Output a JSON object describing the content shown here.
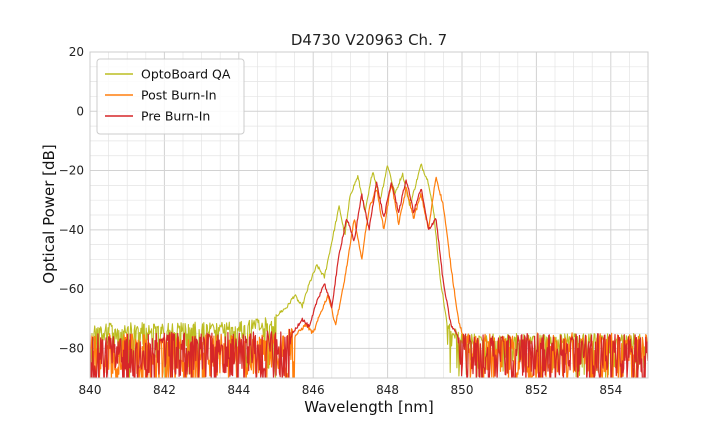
{
  "chart_data": {
    "type": "line",
    "title": "D4730 V20963 Ch. 7",
    "xlabel": "Wavelength [nm]",
    "ylabel": "Optical Power [dB]",
    "xlim": [
      840,
      855
    ],
    "ylim": [
      -90,
      20
    ],
    "xticks": [
      840,
      842,
      844,
      846,
      848,
      850,
      852,
      854
    ],
    "yticks": [
      -80,
      -60,
      -40,
      -20,
      0,
      20
    ],
    "grid": true,
    "legend_position": "top-left",
    "noise_floor": -90,
    "series": [
      {
        "name": "OptoBoard QA",
        "color": "#bcbd22",
        "noise_top": [
          [
            840,
            -71.5
          ],
          [
            844,
            -71
          ],
          [
            845,
            -69
          ],
          [
            845.3,
            -68
          ],
          [
            849.5,
            -70
          ],
          [
            850,
            -75
          ],
          [
            855,
            -75
          ]
        ],
        "points": [
          [
            845.0,
            -69
          ],
          [
            845.3,
            -66
          ],
          [
            845.5,
            -62
          ],
          [
            845.7,
            -66
          ],
          [
            845.9,
            -58
          ],
          [
            846.1,
            -52
          ],
          [
            846.3,
            -56
          ],
          [
            846.5,
            -44
          ],
          [
            846.7,
            -32
          ],
          [
            846.85,
            -42
          ],
          [
            847.0,
            -28
          ],
          [
            847.2,
            -22
          ],
          [
            847.4,
            -34
          ],
          [
            847.6,
            -20
          ],
          [
            847.8,
            -30
          ],
          [
            848.0,
            -18
          ],
          [
            848.2,
            -28
          ],
          [
            848.4,
            -21
          ],
          [
            848.6,
            -32
          ],
          [
            848.9,
            -18
          ],
          [
            849.1,
            -24
          ],
          [
            849.25,
            -35
          ],
          [
            849.4,
            -55
          ],
          [
            849.6,
            -72
          ]
        ]
      },
      {
        "name": "Post Burn-In",
        "color": "#ff7f0e",
        "noise_top": [
          [
            840,
            -75
          ],
          [
            845,
            -75
          ],
          [
            845.4,
            -73
          ],
          [
            850,
            -75
          ],
          [
            855,
            -74
          ]
        ],
        "points": [
          [
            845.5,
            -76
          ],
          [
            845.8,
            -72
          ],
          [
            846.0,
            -75
          ],
          [
            846.2,
            -68
          ],
          [
            846.4,
            -62
          ],
          [
            846.6,
            -72
          ],
          [
            846.8,
            -60
          ],
          [
            847.0,
            -45
          ],
          [
            847.1,
            -36
          ],
          [
            847.3,
            -50
          ],
          [
            847.5,
            -33
          ],
          [
            847.7,
            -26
          ],
          [
            847.9,
            -40
          ],
          [
            848.1,
            -24
          ],
          [
            848.3,
            -38
          ],
          [
            848.5,
            -26
          ],
          [
            848.7,
            -36
          ],
          [
            848.9,
            -28
          ],
          [
            849.1,
            -40
          ],
          [
            849.3,
            -22
          ],
          [
            849.5,
            -32
          ],
          [
            849.7,
            -52
          ],
          [
            849.9,
            -70
          ],
          [
            850.1,
            -80
          ]
        ]
      },
      {
        "name": "Pre Burn-In",
        "color": "#d62728",
        "noise_top": [
          [
            840,
            -75
          ],
          [
            845,
            -74
          ],
          [
            845.5,
            -72
          ],
          [
            849.5,
            -74
          ],
          [
            850,
            -75
          ],
          [
            855,
            -75
          ]
        ],
        "points": [
          [
            845.4,
            -76
          ],
          [
            845.7,
            -70
          ],
          [
            845.9,
            -73
          ],
          [
            846.1,
            -64
          ],
          [
            846.3,
            -58
          ],
          [
            846.5,
            -66
          ],
          [
            846.7,
            -48
          ],
          [
            846.9,
            -36
          ],
          [
            847.1,
            -44
          ],
          [
            847.3,
            -28
          ],
          [
            847.5,
            -40
          ],
          [
            847.7,
            -24
          ],
          [
            847.9,
            -36
          ],
          [
            848.1,
            -24
          ],
          [
            848.3,
            -34
          ],
          [
            848.5,
            -23
          ],
          [
            848.7,
            -34
          ],
          [
            848.9,
            -26
          ],
          [
            849.1,
            -40
          ],
          [
            849.3,
            -36
          ],
          [
            849.5,
            -58
          ],
          [
            849.7,
            -72
          ],
          [
            849.9,
            -76
          ]
        ]
      }
    ]
  }
}
